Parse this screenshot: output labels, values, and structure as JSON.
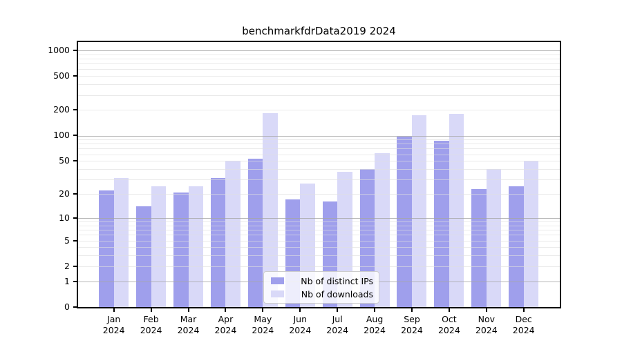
{
  "chart_data": {
    "type": "bar",
    "title": "benchmarkfdrData2019 2024",
    "categories": [
      "Jan 2024",
      "Feb 2024",
      "Mar 2024",
      "Apr 2024",
      "May 2024",
      "Jun 2024",
      "Jul 2024",
      "Aug 2024",
      "Sep 2024",
      "Oct 2024",
      "Nov 2024",
      "Dec 2024"
    ],
    "series": [
      {
        "name": "Nb of distinct IPs",
        "color": "#9f9fec",
        "values": [
          22,
          14,
          21,
          31,
          53,
          17,
          16,
          40,
          97,
          87,
          23,
          25
        ]
      },
      {
        "name": "Nb of downloads",
        "color": "#d9d9f8",
        "values": [
          31,
          25,
          25,
          50,
          183,
          27,
          37,
          62,
          173,
          181,
          40,
          50
        ]
      }
    ],
    "yscale": "symlog-like (log of 1+value), 0 at baseline",
    "y_ticks": [
      0,
      1,
      2,
      5,
      10,
      20,
      50,
      100,
      200,
      500,
      1000
    ],
    "xlabel": "",
    "ylabel": "",
    "grid": "major lines at powers of 10, light minor lines at 2-9 of each decade",
    "legend_position": "lower center inside plot",
    "colors": {
      "axis": "#000000",
      "major_grid": "#b0b0b0",
      "minor_grid": "#e7e7e7",
      "background": "#ffffff"
    }
  }
}
